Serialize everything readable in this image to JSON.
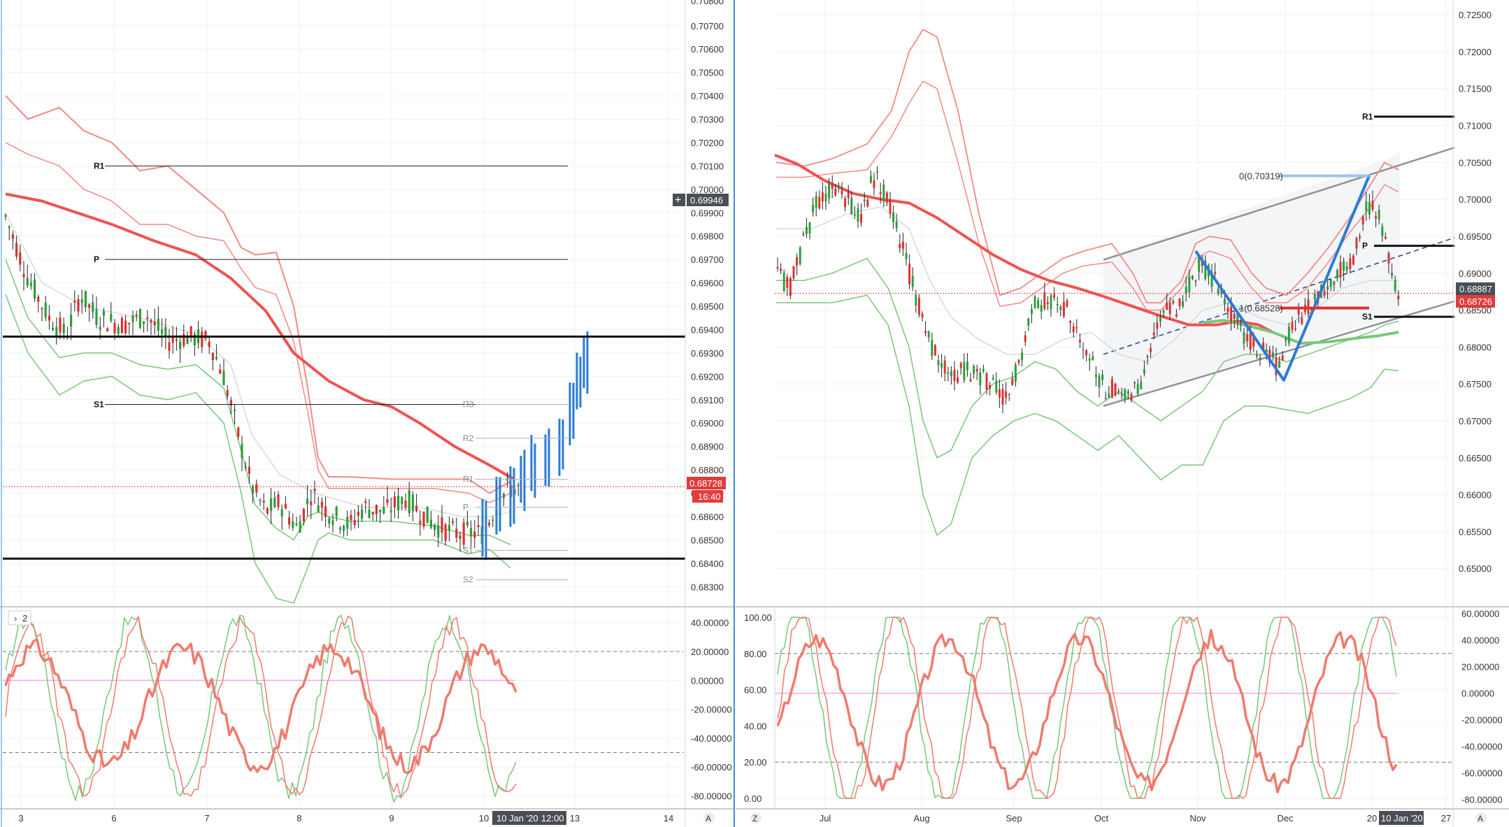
{
  "colors": {
    "background": "#ffffff",
    "grid": "#eef2f5",
    "bull": "#2e9e3a",
    "bear": "#e0302f",
    "ma_red": "#ef5350",
    "bb_red": "#f28a86",
    "bb_green": "#7cc67c",
    "gray_line": "#d9d9d9",
    "blue_projection": "#2b7bd6",
    "price_tag": "#e23b3b",
    "dark_tag": "#4a4f55",
    "osc_red": "#f07a6e",
    "osc_green": "#77c878",
    "osc_zero": "#f4a7f0"
  },
  "left_chart": {
    "price_axis": {
      "top_partial": "0.70800",
      "ticks": [
        "0.70700",
        "0.70600",
        "0.70500",
        "0.70400",
        "0.70300",
        "0.70200",
        "0.70100",
        "0.70000",
        "0.69900",
        "0.69800",
        "0.69700",
        "0.69600",
        "0.69500",
        "0.69400",
        "0.69300",
        "0.69200",
        "0.69100",
        "0.69000",
        "0.68900",
        "0.68800",
        "0.68700",
        "0.68600",
        "0.68500",
        "0.68400",
        "0.68300"
      ],
      "crosshair_value": "0.69946",
      "price_tag": "0.68728",
      "countdown": "16:40"
    },
    "pivots": [
      {
        "label": "R1",
        "value": 0.701
      },
      {
        "label": "P",
        "value": 0.697
      },
      {
        "label": "S1",
        "value": 0.6908
      }
    ],
    "horizontal_lines": [
      0.6937,
      0.6842
    ],
    "pivots_small": [
      {
        "label": "R3",
        "value": 0.6908
      },
      {
        "label": "R2",
        "value": 0.68935
      },
      {
        "label": "R1",
        "value": 0.6876
      },
      {
        "label": "P",
        "value": 0.6864
      },
      {
        "label": "S1",
        "value": 0.68455
      },
      {
        "label": "S2",
        "value": 0.6833
      }
    ],
    "time_axis": [
      "3",
      "6",
      "7",
      "8",
      "9",
      "10",
      "13",
      "14"
    ],
    "time_badge": "10 Jan '20",
    "time_badge2": "12:00",
    "osc_axis": [
      "40.00000",
      "20.00000",
      "0.00000",
      "-20.00000",
      "-40.00000",
      "-60.00000",
      "-80.00000"
    ],
    "osc_legend": "2",
    "axis_button": "A"
  },
  "right_chart": {
    "price_axis": {
      "ticks": [
        "0.72500",
        "0.72000",
        "0.71500",
        "0.71000",
        "0.70500",
        "0.70000",
        "0.69500",
        "0.69000",
        "0.68500",
        "0.68000",
        "0.67500",
        "0.67000",
        "0.66500",
        "0.66000",
        "0.65500",
        "0.65000"
      ],
      "tag_dark": "0.68887",
      "tag_red": "0.68726"
    },
    "pivots": [
      {
        "label": "R1",
        "value": 0.7112
      },
      {
        "label": "P",
        "value": 0.6937
      },
      {
        "label": "S1",
        "value": 0.6841
      }
    ],
    "fib_labels": [
      "0(0.70319)",
      "1(0.68528)"
    ],
    "time_axis": [
      "Jul",
      "Aug",
      "Sep",
      "Oct",
      "Nov",
      "Dec",
      "20",
      "27"
    ],
    "time_badge": "10 Jan '20",
    "osc_axis_left": [
      "100.00",
      "80.00",
      "60.00",
      "40.00",
      "20.00",
      "0.00"
    ],
    "osc_axis_right": [
      "60.00000",
      "40.00000",
      "20.00000",
      "0.00000",
      "-20.00000",
      "-40.00000",
      "-60.00000",
      "-80.00000"
    ],
    "axis_button_left": "Z",
    "axis_button_right": "A"
  },
  "chart_data": [
    {
      "type": "candlestick",
      "title": "",
      "y_range": [
        0.682,
        0.708
      ],
      "x_range": [
        "3",
        "14"
      ],
      "series": [
        {
          "name": "",
          "kind": "pivot-R1",
          "values": [
            0.701
          ]
        },
        {
          "name": "",
          "kind": "pivot-P",
          "values": [
            0.697
          ]
        },
        {
          "name": "",
          "kind": "pivot-S1",
          "values": [
            0.6908
          ]
        }
      ],
      "last_price": 0.68728
    },
    {
      "type": "candlestick",
      "title": "",
      "y_range": [
        0.645,
        0.727
      ],
      "x_range": [
        "Jul",
        "27"
      ],
      "last_price": 0.68726,
      "fibonacci": [
        {
          "level": "0",
          "value": 0.70319
        },
        {
          "level": "1",
          "value": 0.68528
        }
      ]
    }
  ]
}
